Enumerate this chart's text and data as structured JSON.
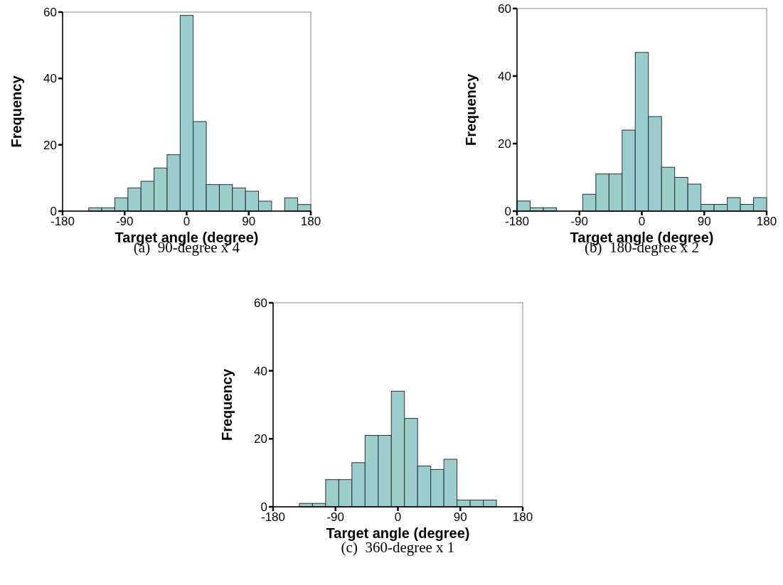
{
  "chart_data": [
    {
      "type": "histogram",
      "xlabel": "Target angle (degree)",
      "ylabel": "Frequency",
      "annotations": [
        "(a)  90-degree x 4"
      ],
      "bins": [
        -180,
        -161.05,
        -142.11,
        -123.16,
        -104.21,
        -85.26,
        -66.32,
        -47.37,
        -28.42,
        -9.47,
        9.47,
        28.42,
        47.37,
        66.32,
        85.26,
        104.21,
        123.16,
        142.11,
        161.05,
        180
      ],
      "values": [
        0,
        0,
        1,
        1,
        4,
        7,
        9,
        13,
        17,
        59,
        27,
        8,
        8,
        7,
        6,
        3,
        0,
        4,
        2
      ],
      "color": "#9bcdcd",
      "xlim": [
        -180,
        180
      ],
      "xticks": [
        -180,
        -90,
        0,
        90,
        180
      ],
      "ylim": [
        0,
        60
      ],
      "yticks": [
        0,
        20,
        40,
        60
      ]
    },
    {
      "type": "histogram",
      "xlabel": "Target angle (degree)",
      "ylabel": "Frequency",
      "annotations": [
        "(b)  180-degree x 2"
      ],
      "bins": [
        -180,
        -161.05,
        -142.11,
        -123.16,
        -104.21,
        -85.26,
        -66.32,
        -47.37,
        -28.42,
        -9.47,
        9.47,
        28.42,
        47.37,
        66.32,
        85.26,
        104.21,
        123.16,
        142.11,
        161.05,
        180
      ],
      "values": [
        3,
        1,
        1,
        0,
        0,
        5,
        11,
        11,
        24,
        47,
        28,
        13,
        10,
        8,
        2,
        2,
        4,
        2,
        4
      ],
      "color": "#9bcdcd",
      "xlim": [
        -180,
        180
      ],
      "xticks": [
        -180,
        -90,
        0,
        90,
        180
      ],
      "ylim": [
        0,
        60
      ],
      "yticks": [
        0,
        20,
        40,
        60
      ]
    },
    {
      "type": "histogram",
      "xlabel": "Target angle (degree)",
      "ylabel": "Frequency",
      "annotations": [
        "(c)  360-degree x 1"
      ],
      "bins": [
        -180,
        -161.05,
        -142.11,
        -123.16,
        -104.21,
        -85.26,
        -66.32,
        -47.37,
        -28.42,
        -9.47,
        9.47,
        28.42,
        47.37,
        66.32,
        85.26,
        104.21,
        123.16,
        142.11,
        161.05,
        180
      ],
      "values": [
        0,
        0,
        1,
        1,
        8,
        8,
        13,
        21,
        21,
        34,
        26,
        12,
        11,
        14,
        2,
        2,
        2,
        0,
        0
      ],
      "color": "#9bcdcd",
      "xlim": [
        -180,
        180
      ],
      "xticks": [
        -180,
        -90,
        0,
        90,
        180
      ],
      "ylim": [
        0,
        60
      ],
      "yticks": [
        0,
        20,
        40,
        60
      ]
    }
  ]
}
